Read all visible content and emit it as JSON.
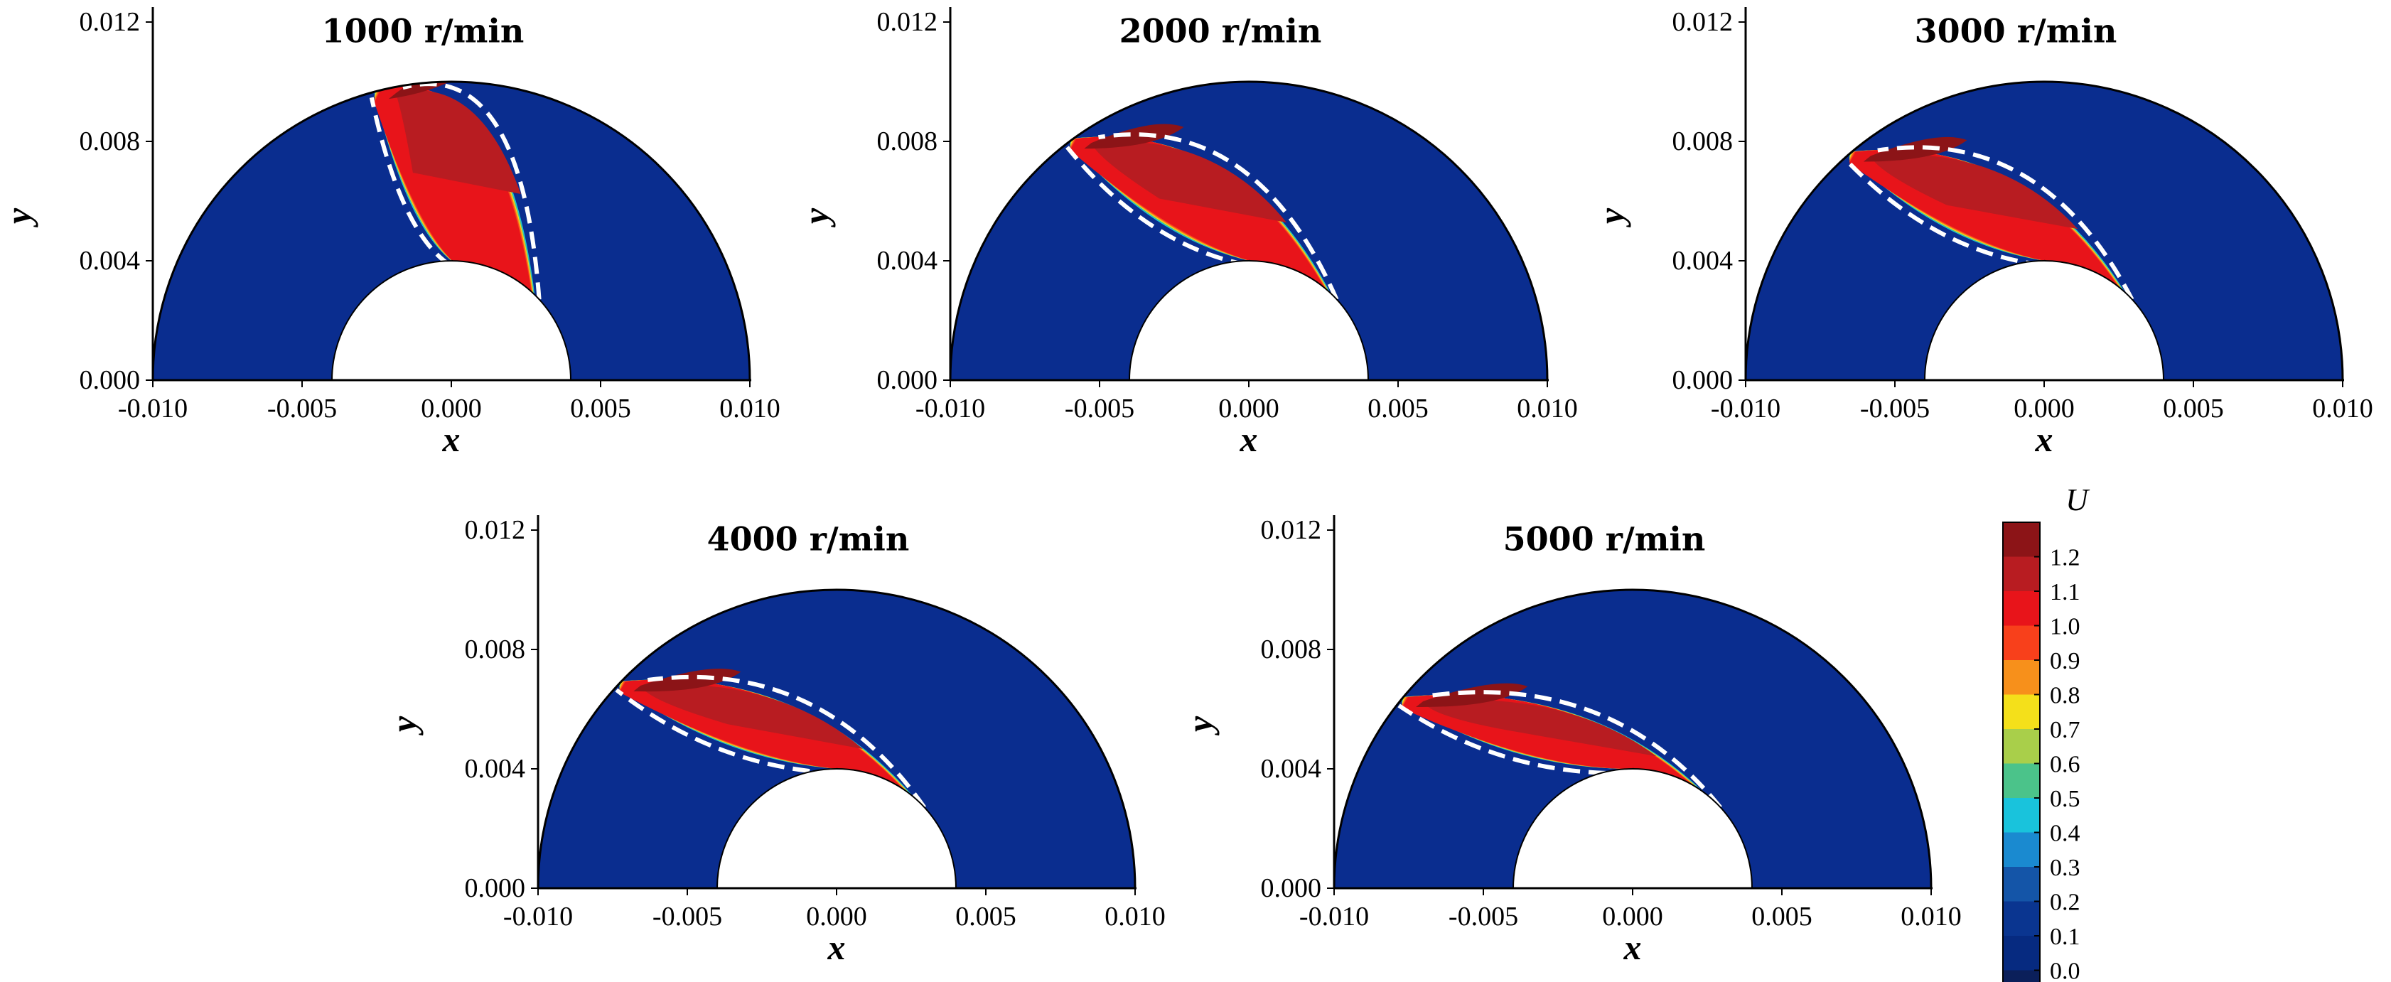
{
  "chart_data": {
    "type": "contour",
    "panels": [
      {
        "title": "1000 r/min",
        "xlabel": "x",
        "ylabel": "y",
        "xlim": [
          -0.01,
          0.01
        ],
        "ylim": [
          0.0,
          0.012
        ],
        "xticks": [
          "-0.010",
          "-0.005",
          "0.000",
          "0.005",
          "0.010"
        ],
        "yticks": [
          "0.000",
          "0.004",
          "0.008",
          "0.012"
        ],
        "jet_head_angle_deg": 105,
        "jet_thickness": 0.0029,
        "outer_radius": 0.01,
        "inner_radius": 0.004
      },
      {
        "title": "2000 r/min",
        "xlabel": "x",
        "ylabel": "y",
        "xlim": [
          -0.01,
          0.01
        ],
        "ylim": [
          0.0,
          0.012
        ],
        "xticks": [
          "-0.010",
          "-0.005",
          "0.000",
          "0.005",
          "0.010"
        ],
        "yticks": [
          "0.000",
          "0.004",
          "0.008",
          "0.012"
        ],
        "jet_head_angle_deg": 127,
        "jet_thickness": 0.0022,
        "outer_radius": 0.01,
        "inner_radius": 0.004
      },
      {
        "title": "3000 r/min",
        "xlabel": "x",
        "ylabel": "y",
        "xlim": [
          -0.01,
          0.01
        ],
        "ylim": [
          0.0,
          0.012
        ],
        "xticks": [
          "-0.010",
          "-0.005",
          "0.000",
          "0.005",
          "0.010"
        ],
        "yticks": [
          "0.000",
          "0.004",
          "0.008",
          "0.012"
        ],
        "jet_head_angle_deg": 131,
        "jet_thickness": 0.0022,
        "outer_radius": 0.01,
        "inner_radius": 0.004
      },
      {
        "title": "4000 r/min",
        "xlabel": "x",
        "ylabel": "y",
        "xlim": [
          -0.01,
          0.01
        ],
        "ylim": [
          0.0,
          0.012
        ],
        "xticks": [
          "-0.010",
          "-0.005",
          "0.000",
          "0.005",
          "0.010"
        ],
        "yticks": [
          "0.000",
          "0.004",
          "0.008",
          "0.012"
        ],
        "jet_head_angle_deg": 137,
        "jet_thickness": 0.002,
        "outer_radius": 0.01,
        "inner_radius": 0.004
      },
      {
        "title": "5000 r/min",
        "xlabel": "x",
        "ylabel": "y",
        "xlim": [
          -0.01,
          0.01
        ],
        "ylim": [
          0.0,
          0.012
        ],
        "xticks": [
          "-0.010",
          "-0.005",
          "0.000",
          "0.005",
          "0.010"
        ],
        "yticks": [
          "0.000",
          "0.004",
          "0.008",
          "0.012"
        ],
        "jet_head_angle_deg": 141,
        "jet_thickness": 0.0021,
        "outer_radius": 0.01,
        "inner_radius": 0.004
      }
    ],
    "colorbar": {
      "title": "U",
      "levels": [
        "1.2",
        "1.1",
        "1.0",
        "0.9",
        "0.8",
        "0.7",
        "0.6",
        "0.5",
        "0.4",
        "0.3",
        "0.2",
        "0.1",
        "0.0"
      ],
      "colors": [
        "#8c1417",
        "#b81c21",
        "#e8141a",
        "#f8401b",
        "#f7901b",
        "#f4e01a",
        "#a9cf4a",
        "#4bc38a",
        "#19c3dc",
        "#1a8ad0",
        "#1455a8",
        "#0a3590",
        "#062a80",
        "#0b1f5a"
      ]
    },
    "background_color": "#0a2d8f"
  }
}
